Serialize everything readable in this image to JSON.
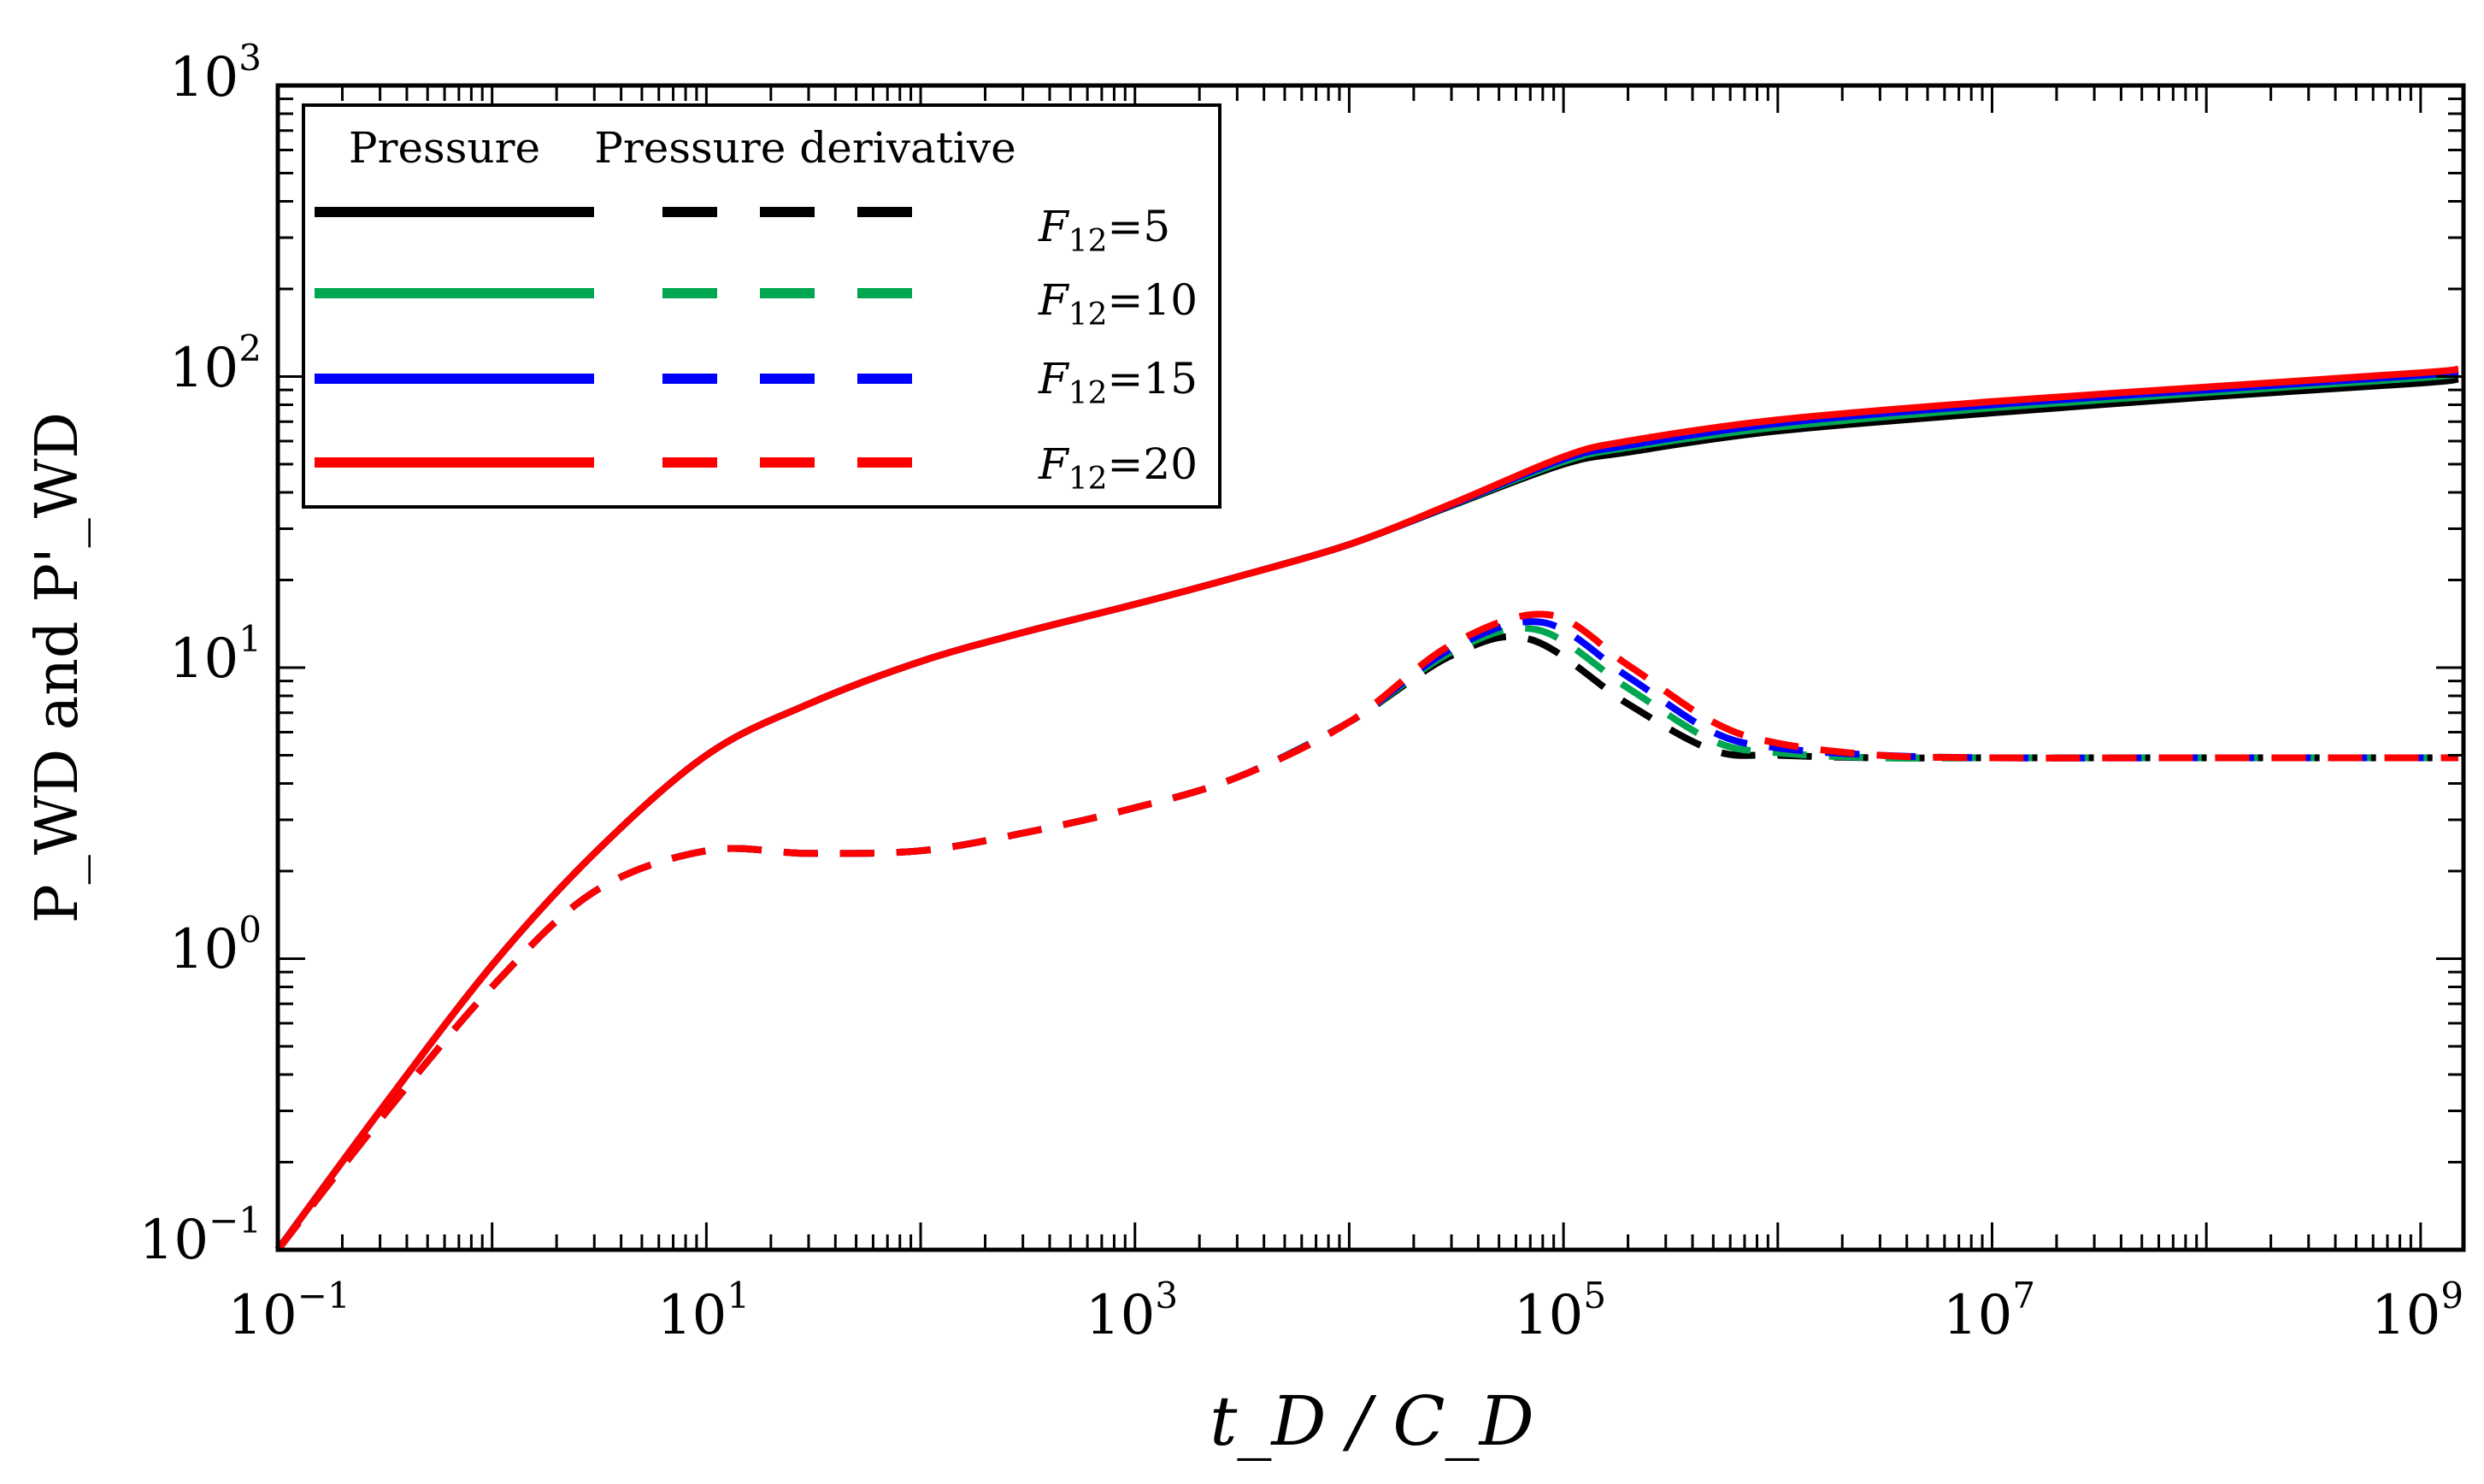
{
  "chart_data": {
    "type": "line",
    "title": "",
    "xlabel": "t_D / C_D",
    "ylabel": "P_WD and P'_WD",
    "x_scale": "log",
    "y_scale": "log",
    "xlim_log10": [
      -1,
      9.2
    ],
    "ylim_log10": [
      -1,
      3
    ],
    "x_ticks": [
      {
        "base": "10",
        "exp": "−1"
      },
      {
        "base": "10",
        "exp": "1"
      },
      {
        "base": "10",
        "exp": "3"
      },
      {
        "base": "10",
        "exp": "5"
      },
      {
        "base": "10",
        "exp": "7"
      },
      {
        "base": "10",
        "exp": "9"
      }
    ],
    "x_tick_exponents": [
      -1,
      1,
      3,
      5,
      7,
      9
    ],
    "y_ticks": [
      {
        "base": "10",
        "exp": "−1"
      },
      {
        "base": "10",
        "exp": "0"
      },
      {
        "base": "10",
        "exp": "1"
      },
      {
        "base": "10",
        "exp": "2"
      },
      {
        "base": "10",
        "exp": "3"
      }
    ],
    "y_tick_exponents": [
      -1,
      0,
      1,
      2,
      3
    ],
    "legend": {
      "position": "top-left",
      "header_pressure": "Pressure",
      "header_derivative": "Pressure derivative",
      "entries": [
        {
          "label_main": "F",
          "label_sub": "12",
          "label_tail": "=5",
          "color": "#000000"
        },
        {
          "label_main": "F",
          "label_sub": "12",
          "label_tail": "=10",
          "color": "#00a650"
        },
        {
          "label_main": "F",
          "label_sub": "12",
          "label_tail": "=15",
          "color": "#0000ff"
        },
        {
          "label_main": "F",
          "label_sub": "12",
          "label_tail": "=20",
          "color": "#ff0000"
        }
      ]
    },
    "series": [
      {
        "name": "F12=5 pressure",
        "color": "#000000",
        "style": "solid",
        "x": [
          0.1,
          0.3,
          1,
          3,
          10,
          30,
          100,
          300,
          1000,
          3000,
          10000,
          30000,
          100000,
          200000,
          1000000,
          10000000,
          100000000,
          1000000000,
          1500000000
        ],
        "y": [
          0.1,
          0.3,
          0.95,
          2.3,
          5.0,
          7.5,
          10.5,
          13.2,
          16.5,
          20.5,
          26.5,
          36,
          50,
          55,
          65,
          75,
          85,
          95,
          98
        ]
      },
      {
        "name": "F12=10 pressure",
        "color": "#00a650",
        "style": "solid",
        "x": [
          0.1,
          0.3,
          1,
          3,
          10,
          30,
          100,
          300,
          1000,
          3000,
          10000,
          30000,
          100000,
          200000,
          1000000,
          10000000,
          100000000,
          1000000000,
          1500000000
        ],
        "y": [
          0.1,
          0.3,
          0.95,
          2.3,
          5.0,
          7.5,
          10.5,
          13.2,
          16.5,
          20.5,
          26.5,
          36.2,
          51,
          57,
          67,
          78,
          88,
          99,
          102
        ]
      },
      {
        "name": "F12=15 pressure",
        "color": "#0000ff",
        "style": "solid",
        "x": [
          0.1,
          0.3,
          1,
          3,
          10,
          30,
          100,
          300,
          1000,
          3000,
          10000,
          30000,
          100000,
          200000,
          1000000,
          10000000,
          100000000,
          1000000000,
          1500000000
        ],
        "y": [
          0.1,
          0.3,
          0.95,
          2.3,
          5.0,
          7.5,
          10.5,
          13.2,
          16.5,
          20.5,
          26.5,
          36.3,
          52,
          58,
          69,
          80,
          90,
          101,
          104
        ]
      },
      {
        "name": "F12=20 pressure",
        "color": "#ff0000",
        "style": "solid",
        "x": [
          0.1,
          0.3,
          1,
          3,
          10,
          30,
          100,
          300,
          1000,
          3000,
          10000,
          30000,
          100000,
          200000,
          1000000,
          10000000,
          100000000,
          1000000000,
          1500000000
        ],
        "y": [
          0.1,
          0.3,
          0.95,
          2.3,
          5.0,
          7.5,
          10.5,
          13.2,
          16.5,
          20.5,
          26.5,
          36.5,
          53,
          60,
          71,
          82,
          92,
          103,
          106
        ]
      },
      {
        "name": "F12=5 derivative",
        "color": "#000000",
        "style": "dashed",
        "x": [
          0.1,
          0.3,
          1,
          3,
          10,
          30,
          100,
          300,
          1000,
          3000,
          10000,
          30000,
          70000,
          200000,
          500000,
          1000000,
          3000000,
          10000000,
          100000000,
          1000000000,
          1500000000
        ],
        "y": [
          0.1,
          0.28,
          0.8,
          1.7,
          2.35,
          2.3,
          2.35,
          2.7,
          3.3,
          4.2,
          6.5,
          11.0,
          12.5,
          7.5,
          5.2,
          5.0,
          4.9,
          4.9,
          4.9,
          4.9,
          4.9
        ]
      },
      {
        "name": "F12=10 derivative",
        "color": "#00a650",
        "style": "dashed",
        "x": [
          0.1,
          0.3,
          1,
          3,
          10,
          30,
          100,
          300,
          1000,
          3000,
          10000,
          30000,
          75000,
          200000,
          500000,
          1000000,
          3000000,
          10000000,
          100000000,
          1000000000,
          1500000000
        ],
        "y": [
          0.1,
          0.28,
          0.8,
          1.7,
          2.35,
          2.3,
          2.35,
          2.7,
          3.3,
          4.2,
          6.5,
          11.3,
          13.5,
          8.5,
          5.6,
          5.1,
          4.9,
          4.9,
          4.9,
          4.9,
          4.9
        ]
      },
      {
        "name": "F12=15 derivative",
        "color": "#0000ff",
        "style": "dashed",
        "x": [
          0.1,
          0.3,
          1,
          3,
          10,
          30,
          100,
          300,
          1000,
          3000,
          10000,
          30000,
          80000,
          200000,
          500000,
          1000000,
          3000000,
          10000000,
          100000000,
          1000000000,
          1500000000
        ],
        "y": [
          0.1,
          0.28,
          0.8,
          1.7,
          2.35,
          2.3,
          2.35,
          2.7,
          3.3,
          4.2,
          6.5,
          11.6,
          14.3,
          9.3,
          6.0,
          5.3,
          5.0,
          4.9,
          4.9,
          4.9,
          4.9
        ]
      },
      {
        "name": "F12=20 derivative",
        "color": "#ff0000",
        "style": "dashed",
        "x": [
          0.1,
          0.3,
          1,
          3,
          10,
          30,
          100,
          300,
          1000,
          3000,
          10000,
          30000,
          85000,
          200000,
          500000,
          1000000,
          3000000,
          10000000,
          100000000,
          1000000000,
          1500000000
        ],
        "y": [
          0.1,
          0.28,
          0.8,
          1.7,
          2.35,
          2.3,
          2.35,
          2.7,
          3.3,
          4.2,
          6.5,
          12.0,
          15.2,
          10.2,
          6.5,
          5.5,
          5.0,
          4.9,
          4.9,
          4.9,
          4.9
        ]
      }
    ]
  }
}
